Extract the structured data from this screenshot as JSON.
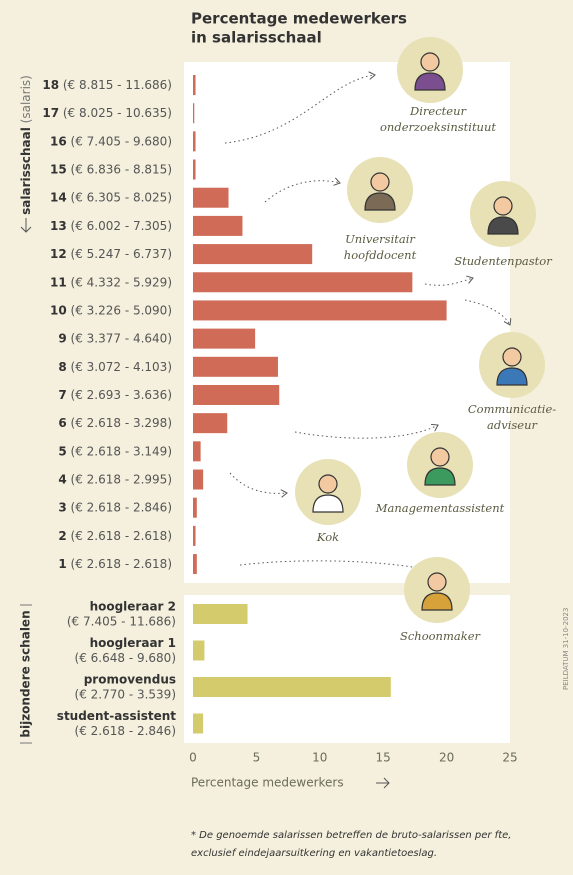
{
  "chart_data": {
    "type": "bar",
    "orientation": "horizontal",
    "title": [
      "Percentage medewerkers",
      "in salarisschaal"
    ],
    "x_label": "Percentage medewerkers",
    "xlim": [
      0,
      25
    ],
    "xticks": [
      0,
      5,
      10,
      15,
      20,
      25
    ],
    "groups": [
      {
        "label": "salarisschaal",
        "label_note": "(salaris)",
        "color": "#cf6b56",
        "categories": [
          {
            "name": "18",
            "range": "(€ 8.815 - 11.686)"
          },
          {
            "name": "17",
            "range": "(€ 8.025 - 10.635)"
          },
          {
            "name": "16",
            "range": "(€ 7.405 - 9.680)"
          },
          {
            "name": "15",
            "range": "(€ 6.836 - 8.815)"
          },
          {
            "name": "14",
            "range": "(€ 6.305 - 8.025)"
          },
          {
            "name": "13",
            "range": "(€ 6.002 - 7.305)"
          },
          {
            "name": "12",
            "range": "(€ 5.247 - 6.737)"
          },
          {
            "name": "11",
            "range": "(€ 4.332 - 5.929)"
          },
          {
            "name": "10",
            "range": "(€ 3.226 - 5.090)"
          },
          {
            "name": "9",
            "range": "(€ 3.377 - 4.640)"
          },
          {
            "name": "8",
            "range": "(€ 3.072 - 4.103)"
          },
          {
            "name": "7",
            "range": "(€ 2.693 - 3.636)"
          },
          {
            "name": "6",
            "range": "(€ 2.618 - 3.298)"
          },
          {
            "name": "5",
            "range": "(€ 2.618 - 3.149)"
          },
          {
            "name": "4",
            "range": "(€ 2.618 - 2.995)"
          },
          {
            "name": "3",
            "range": "(€ 2.618 - 2.846)"
          },
          {
            "name": "2",
            "range": "(€ 2.618 - 2.618)"
          },
          {
            "name": "1",
            "range": "(€ 2.618 - 2.618)"
          }
        ],
        "values": [
          0.2,
          0.1,
          0.2,
          0.2,
          2.8,
          3.9,
          9.4,
          17.3,
          20.0,
          4.9,
          6.7,
          6.8,
          2.7,
          0.6,
          0.8,
          0.3,
          0.2,
          0.3
        ]
      },
      {
        "label": "bijzondere schalen",
        "color": "#d3cb6c",
        "categories": [
          {
            "name": "hoogleraar 2",
            "range": "(€ 7.405 - 11.686)"
          },
          {
            "name": "hoogleraar 1",
            "range": "(€ 6.648 - 9.680)"
          },
          {
            "name": "promovendus",
            "range": "(€ 2.770 - 3.539)"
          },
          {
            "name": "student-assistent",
            "range": "(€ 2.618 - 2.846)"
          }
        ],
        "values": [
          4.3,
          0.9,
          15.6,
          0.8
        ]
      }
    ],
    "roles": [
      {
        "lines": [
          "Directeur",
          "onderzoeksinstituut"
        ]
      },
      {
        "lines": [
          "Universitair",
          "hoofddocent"
        ]
      },
      {
        "lines": [
          "Studentenpastor"
        ]
      },
      {
        "lines": [
          "Communicatie-",
          "adviseur"
        ]
      },
      {
        "lines": [
          "Managementassistent"
        ]
      },
      {
        "lines": [
          "Kok"
        ]
      },
      {
        "lines": [
          "Schoonmaker"
        ]
      }
    ],
    "footnote": [
      "* De genoemde salarissen betreffen de bruto-salarissen per fte,",
      "exclusief eindejaarsuitkering en vakantietoeslag."
    ],
    "date_note": "PEILDATUM 31-10-2023"
  }
}
